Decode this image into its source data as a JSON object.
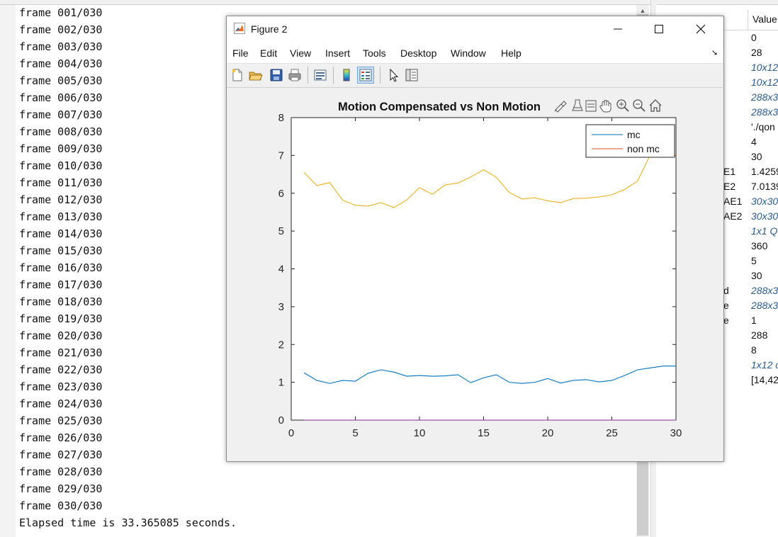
{
  "command_window": {
    "frames": [
      "frame 001/030",
      "frame 002/030",
      "frame 003/030",
      "frame 004/030",
      "frame 005/030",
      "frame 006/030",
      "frame 007/030",
      "frame 008/030",
      "frame 009/030",
      "frame 010/030",
      "frame 011/030",
      "frame 012/030",
      "frame 013/030",
      "frame 014/030",
      "frame 015/030",
      "frame 016/030",
      "frame 017/030",
      "frame 018/030",
      "frame 019/030",
      "frame 020/030",
      "frame 021/030",
      "frame 022/030",
      "frame 023/030",
      "frame 024/030",
      "frame 025/030",
      "frame 026/030",
      "frame 027/030",
      "frame 028/030",
      "frame 029/030",
      "frame 030/030"
    ],
    "elapsed": "Elapsed time is 33.365085 seconds."
  },
  "workspace": {
    "value_header": "Value",
    "names": [
      "E1",
      "E2",
      "AE1",
      "AE2",
      "d",
      "e",
      "e"
    ],
    "values": [
      {
        "text": "0",
        "italic": false
      },
      {
        "text": "28",
        "italic": false
      },
      {
        "text": "10x12",
        "italic": true
      },
      {
        "text": "10x12",
        "italic": true
      },
      {
        "text": "288x3",
        "italic": true
      },
      {
        "text": "288x3",
        "italic": true
      },
      {
        "text": "'./qon",
        "italic": false
      },
      {
        "text": "4",
        "italic": false
      },
      {
        "text": "30",
        "italic": false
      },
      {
        "text": "1.4259",
        "italic": false
      },
      {
        "text": "7.0139",
        "italic": false
      },
      {
        "text": "30x30",
        "italic": true
      },
      {
        "text": "30x30",
        "italic": true
      },
      {
        "text": "1x1 Q",
        "italic": true
      },
      {
        "text": "360",
        "italic": false
      },
      {
        "text": "5",
        "italic": false
      },
      {
        "text": "30",
        "italic": false
      },
      {
        "text": "288x3",
        "italic": true
      },
      {
        "text": "288x3",
        "italic": true
      },
      {
        "text": "1",
        "italic": false
      },
      {
        "text": "288",
        "italic": false
      },
      {
        "text": "8",
        "italic": false
      },
      {
        "text": "1x12 c",
        "italic": true
      },
      {
        "text": "[14,42",
        "italic": false
      }
    ]
  },
  "figure": {
    "title": "Figure 2",
    "menu": [
      "File",
      "Edit",
      "View",
      "Insert",
      "Tools",
      "Desktop",
      "Window",
      "Help"
    ],
    "toolbar_icons": [
      "new-figure-icon",
      "open-file-icon",
      "save-icon",
      "print-icon",
      "link-plot-icon",
      "colorbar-icon",
      "legend-icon",
      "pointer-icon",
      "property-inspector-icon"
    ],
    "axes_icons": [
      "brush-icon",
      "data-tip-icon",
      "linked-data-icon",
      "pan-icon",
      "zoom-in-icon",
      "zoom-out-icon",
      "home-icon"
    ]
  },
  "chart_data": {
    "type": "line",
    "title": "Motion Compensated vs Non Motion",
    "xlabel": "",
    "ylabel": "",
    "xlim": [
      0,
      30
    ],
    "ylim": [
      0,
      8
    ],
    "xticks": [
      0,
      5,
      10,
      15,
      20,
      25,
      30
    ],
    "yticks": [
      0,
      1,
      2,
      3,
      4,
      5,
      6,
      7,
      8
    ],
    "legend": {
      "placement": "top-right",
      "entries": [
        "mc",
        "non mc"
      ]
    },
    "x": [
      1,
      2,
      3,
      4,
      5,
      6,
      7,
      8,
      9,
      10,
      11,
      12,
      13,
      14,
      15,
      16,
      17,
      18,
      19,
      20,
      21,
      22,
      23,
      24,
      25,
      26,
      27,
      28,
      29,
      30
    ],
    "series": [
      {
        "name": "mc",
        "color": "#0072BD",
        "values": [
          1.25,
          1.05,
          0.97,
          1.05,
          1.03,
          1.24,
          1.33,
          1.27,
          1.16,
          1.18,
          1.16,
          1.17,
          1.2,
          0.99,
          1.12,
          1.2,
          1.0,
          0.97,
          1.0,
          1.1,
          0.98,
          1.05,
          1.07,
          1.01,
          1.05,
          1.18,
          1.33,
          1.38,
          1.43,
          1.43
        ]
      },
      {
        "name": "non mc",
        "color": "#EDB120",
        "values": [
          6.55,
          6.2,
          6.28,
          5.82,
          5.68,
          5.66,
          5.75,
          5.62,
          5.82,
          6.15,
          5.97,
          6.22,
          6.27,
          6.43,
          6.62,
          6.42,
          6.02,
          5.85,
          5.88,
          5.8,
          5.75,
          5.86,
          5.87,
          5.9,
          5.96,
          6.1,
          6.32,
          7.02,
          7.08,
          7.01
        ]
      },
      {
        "name": "",
        "color": "#7E2F8E",
        "values": [
          0,
          0,
          0,
          0,
          0,
          0,
          0,
          0,
          0,
          0,
          0,
          0,
          0,
          0,
          0,
          0,
          0,
          0,
          0,
          0,
          0,
          0,
          0,
          0,
          0,
          0,
          0,
          0,
          0,
          0
        ]
      }
    ]
  }
}
